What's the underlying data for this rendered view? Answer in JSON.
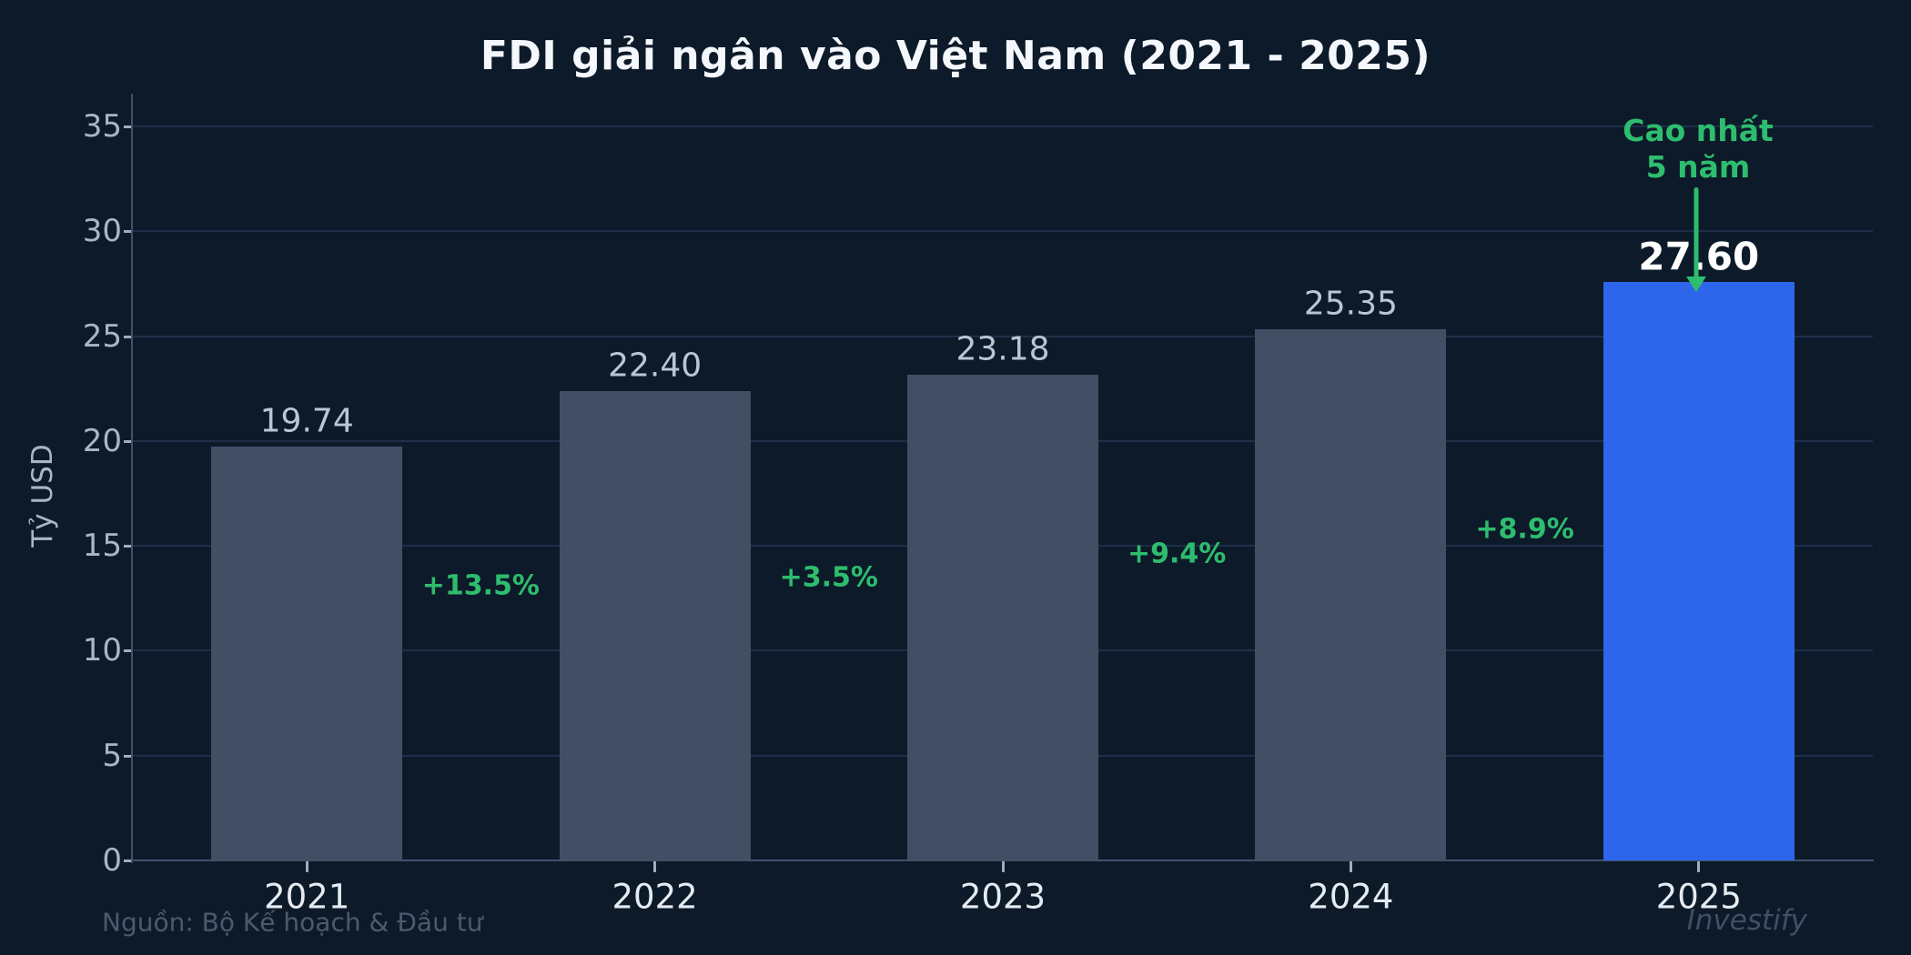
{
  "title": "FDI giải ngân vào Việt Nam (2021 - 2025)",
  "y_axis": {
    "label": "Tỷ USD"
  },
  "annotation": {
    "line1": "Cao nhất",
    "line2": "5 năm"
  },
  "source": "Nguồn: Bộ Kế hoạch & Đầu tư",
  "watermark": "Investify",
  "chart_data": {
    "type": "bar",
    "title": "FDI giải ngân vào Việt Nam (2021 - 2025)",
    "xlabel": "",
    "ylabel": "Tỷ USD",
    "categories": [
      "2021",
      "2022",
      "2023",
      "2024",
      "2025"
    ],
    "values": [
      19.74,
      22.4,
      23.18,
      25.35,
      27.6
    ],
    "value_labels": [
      "19.74",
      "22.40",
      "23.18",
      "25.35",
      "27.60"
    ],
    "growth_labels": [
      "+13.5%",
      "+3.5%",
      "+9.4%",
      "+8.9%"
    ],
    "growth_label_levels": [
      13.1,
      13.5,
      14.6,
      15.8
    ],
    "highlight_index": 4,
    "highlight_note": "Cao nhất 5 năm",
    "ylim": [
      0,
      35
    ],
    "yticks": [
      0,
      5,
      10,
      15,
      20,
      25,
      30,
      35
    ],
    "grid": true,
    "legend": "none"
  },
  "colors": {
    "background": "#0D1A29",
    "bar": "#414E64",
    "bar_highlight": "#2E66EB",
    "green": "#2DBD6E",
    "grid": "#1D2F47",
    "spine": "#41526A",
    "tickmark": "#9DAEBF",
    "tick_label": "#A9B6C6",
    "value_label": "#B9C6D5",
    "year_label": "#E5EBF2",
    "title": "#F4F7FB",
    "highlight_value": "#FFFFFF",
    "source": "#4B5B6F",
    "watermark": "#3E4F66"
  }
}
